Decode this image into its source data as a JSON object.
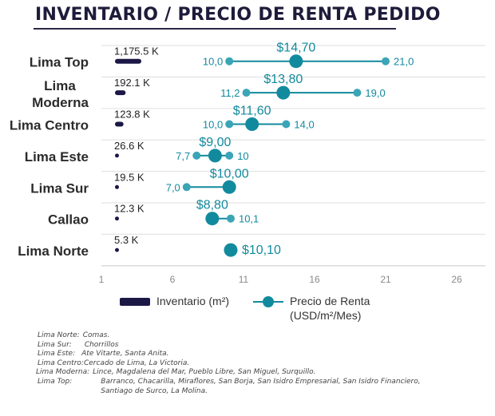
{
  "title": "INVENTARIO / PRECIO DE RENTA PEDIDO",
  "colors": {
    "inventory": "#1b1846",
    "price": "#128a9e",
    "price_light": "#3aa5b6",
    "title": "#1e1b3a",
    "grid": "#e3e3e3"
  },
  "chart_data": {
    "type": "dumbbell",
    "title": "INVENTARIO / PRECIO DE RENTA PEDIDO",
    "xlabel": "",
    "ylabel": "",
    "xlim": [
      1,
      27
    ],
    "xticks": [
      "1",
      "6",
      "11",
      "16",
      "21",
      "26"
    ],
    "xtick_values": [
      1,
      6,
      11,
      16,
      21,
      26
    ],
    "grid": true,
    "categories": [
      "Lima Top",
      "Lima Moderna",
      "Lima Centro",
      "Lima Este",
      "Lima Sur",
      "Callao",
      "Lima Norte"
    ],
    "category_lines": [
      [
        "Lima Top"
      ],
      [
        "Lima",
        "Moderna"
      ],
      [
        "Lima Centro"
      ],
      [
        "Lima Este"
      ],
      [
        "Lima Sur"
      ],
      [
        "Callao"
      ],
      [
        "Lima Norte"
      ]
    ],
    "series": [
      {
        "name": "Inventario (m²)",
        "type": "bar",
        "values_k": [
          1175.5,
          192.1,
          123.8,
          26.6,
          19.5,
          12.3,
          5.3
        ],
        "labels": [
          "1,175.5 K",
          "192.1 K",
          "123.8 K",
          "26.6 K",
          "19.5 K",
          "12.3 K",
          "5.3 K"
        ]
      },
      {
        "name": "Precio de Renta (USD/m²/Mes)",
        "type": "range",
        "avg": [
          14.7,
          13.8,
          11.6,
          9.0,
          10.0,
          8.8,
          10.1
        ],
        "avg_labels": [
          "$14,70",
          "$13,80",
          "$11,60",
          "$9,00",
          "$10,00",
          "$8,80",
          "$10,10"
        ],
        "min": [
          10.0,
          11.2,
          10.0,
          7.7,
          7.0,
          null,
          null
        ],
        "min_labels": [
          "10,0",
          "11,2",
          "10,0",
          "7,7",
          "7,0",
          null,
          null
        ],
        "max": [
          21.0,
          19.0,
          14.0,
          10.0,
          null,
          10.1,
          null
        ],
        "max_labels": [
          "21,0",
          "19,0",
          "14,0",
          "10",
          null,
          "10,1",
          null
        ]
      }
    ],
    "legend": [
      "Inventario (m²)",
      "Precio de Renta (USD/m²/Mes)"
    ],
    "legend_position": "bottom"
  },
  "legend": {
    "inventory_label": "Inventario (m²)",
    "price_label_line1": "Precio de Renta",
    "price_label_line2": "(USD/m²/Mes)"
  },
  "notes": [
    {
      "label": "Lima Norte:",
      "text": "Comas."
    },
    {
      "label": "Lima Sur:",
      "text": "Chorrillos"
    },
    {
      "label": "Lima Este:",
      "text": "Ate Vitarte, Santa Anita."
    },
    {
      "label": "Lima Centro:",
      "text": "Cercado de Lima, La Victoria."
    },
    {
      "label": "Lima Moderna:",
      "text": "Lince, Magdalena del Mar, Pueblo Libre, San Miguel, Surquillo."
    },
    {
      "label": "Lima Top:",
      "text": "Barranco, Chacarilla, Miraflores, San Borja, San Isidro Empresarial, San Isidro Financiero, Santiago de Surco, La Molina."
    }
  ]
}
